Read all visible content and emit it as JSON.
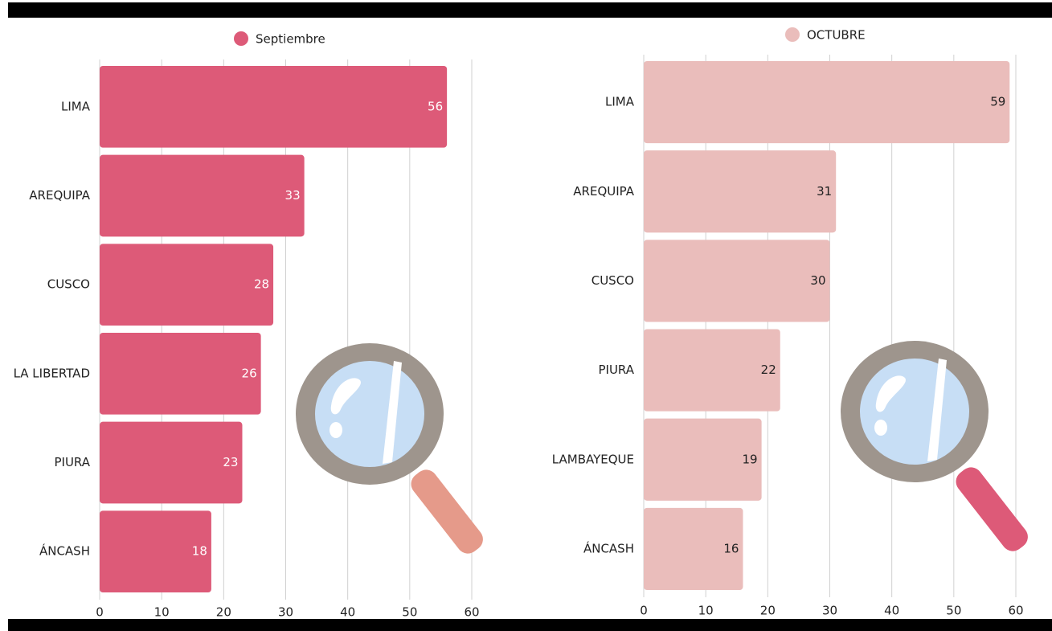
{
  "chart_data": [
    {
      "type": "bar",
      "orientation": "horizontal",
      "categories": [
        "LIMA",
        "AREQUIPA",
        "CUSCO",
        "LA LIBERTAD",
        "PIURA",
        "ÁNCASH"
      ],
      "series": [
        {
          "name": "Septiembre",
          "color": "#dd5a78",
          "values": [
            56,
            33,
            28,
            26,
            23,
            18
          ]
        }
      ],
      "xlim": [
        0,
        60
      ],
      "xticks": [
        0,
        10,
        20,
        30,
        40,
        50,
        60
      ],
      "grid": true
    },
    {
      "type": "bar",
      "orientation": "horizontal",
      "categories": [
        "LIMA",
        "AREQUIPA",
        "CUSCO",
        "PIURA",
        "LAMBAYEQUE",
        "ÁNCASH"
      ],
      "series": [
        {
          "name": "OCTUBRE",
          "color": "#eabdbb",
          "values": [
            59,
            31,
            30,
            22,
            19,
            16
          ]
        }
      ],
      "xlim": [
        0,
        60
      ],
      "xticks": [
        0,
        10,
        20,
        30,
        40,
        50,
        60
      ],
      "grid": true
    }
  ]
}
